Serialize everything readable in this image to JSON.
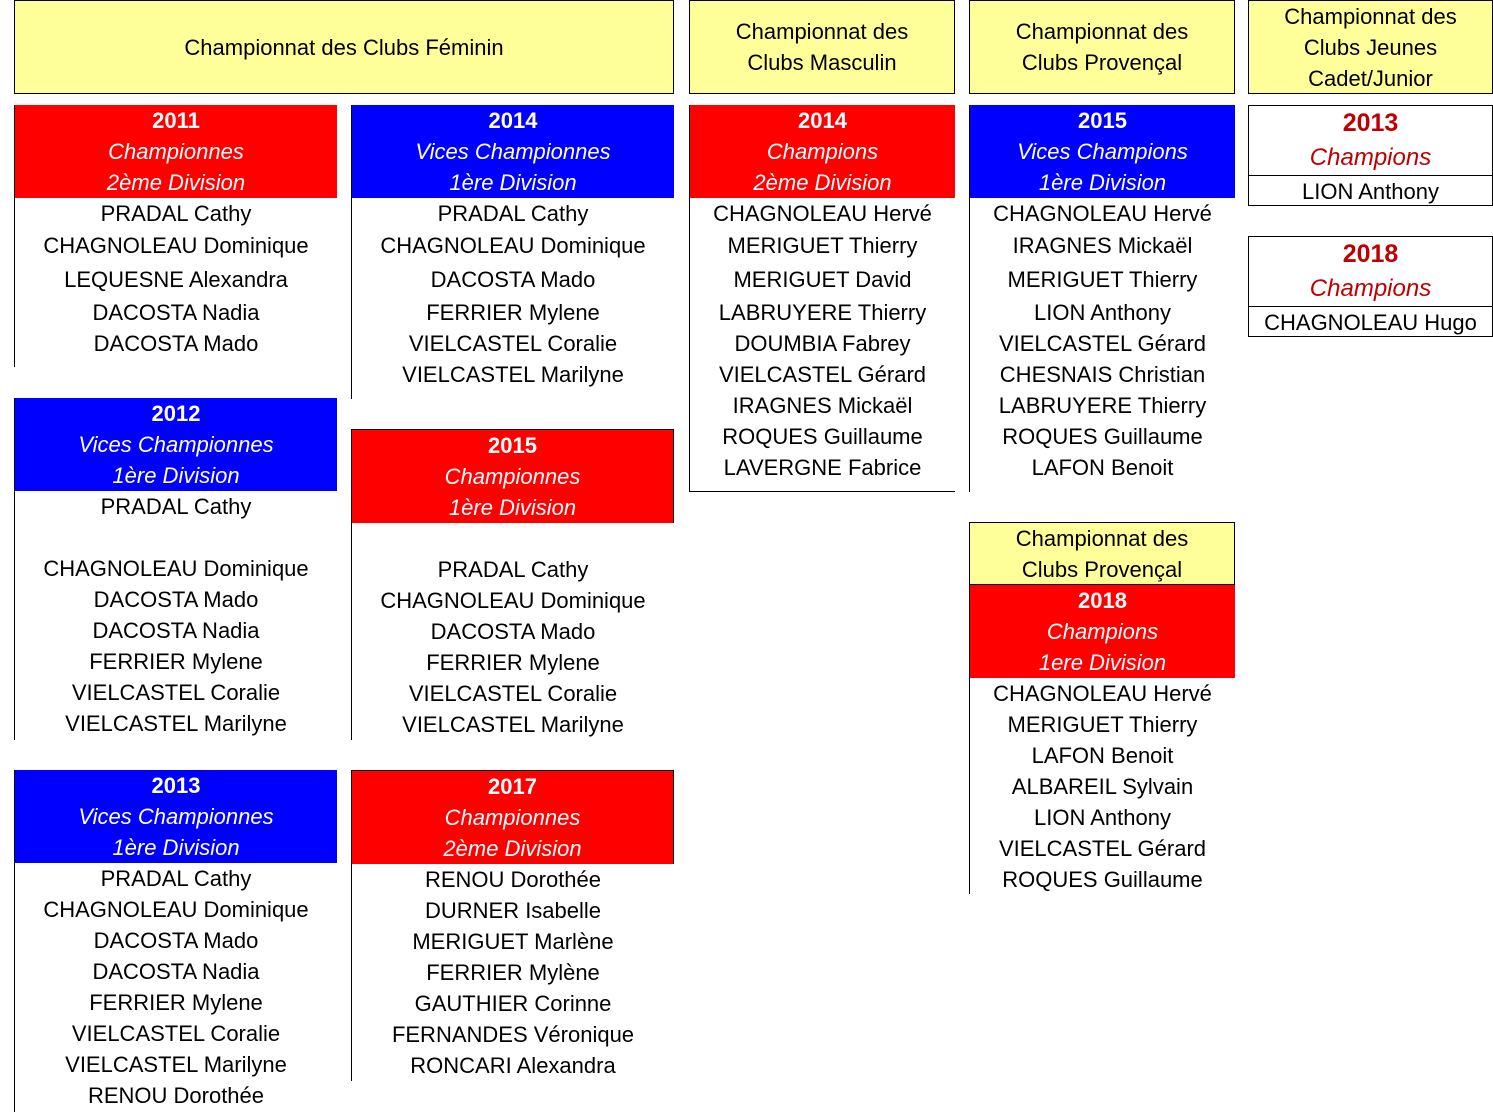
{
  "headers": {
    "feminin": "Championnat des Clubs Féminin",
    "masculin": "Championnat des\nClubs Masculin",
    "provencal": "Championnat des\nClubs Provençal",
    "jeunes": "Championnat des\nClubs Jeunes\nCadet/Junior",
    "provencal2": "Championnat des\nClubs Provençal"
  },
  "colors": {
    "red": "#ff0000",
    "blue": "#0000ff",
    "header_yellow": "#ffff99",
    "dark_red_text": "#c00000"
  },
  "cards": {
    "f2011": {
      "year": "2011",
      "title": "Championnes",
      "division": "2ème Division",
      "names": [
        "PRADAL Cathy",
        "CHAGNOLEAU Dominique",
        "LEQUESNE Alexandra",
        "DACOSTA Nadia",
        "DACOSTA Mado"
      ]
    },
    "f2014": {
      "year": "2014",
      "title": "Vices Championnes",
      "division": "1ère Division",
      "names": [
        "PRADAL Cathy",
        "CHAGNOLEAU Dominique",
        "DACOSTA Mado",
        "FERRIER Mylene",
        "VIELCASTEL Coralie",
        "VIELCASTEL Marilyne"
      ]
    },
    "f2012": {
      "year": "2012",
      "title": "Vices Championnes",
      "division": "1ère Division",
      "names": [
        "PRADAL Cathy",
        "CHAGNOLEAU Dominique",
        "DACOSTA Mado",
        "DACOSTA Nadia",
        "FERRIER Mylene",
        "VIELCASTEL Coralie",
        "VIELCASTEL Marilyne"
      ]
    },
    "f2015": {
      "year": "2015",
      "title": "Championnes",
      "division": "1ère Division",
      "names": [
        "PRADAL Cathy",
        "CHAGNOLEAU Dominique",
        "DACOSTA Mado",
        "FERRIER Mylene",
        "VIELCASTEL Coralie",
        "VIELCASTEL Marilyne"
      ]
    },
    "f2013": {
      "year": "2013",
      "title": "Vices Championnes",
      "division": "1ère Division",
      "names": [
        "PRADAL Cathy",
        "CHAGNOLEAU Dominique",
        "DACOSTA Mado",
        "DACOSTA Nadia",
        "FERRIER Mylene",
        "VIELCASTEL Coralie",
        "VIELCASTEL Marilyne",
        "RENOU Dorothée"
      ]
    },
    "f2017": {
      "year": "2017",
      "title": "Championnes",
      "division": "2ème Division",
      "names": [
        "RENOU Dorothée",
        "DURNER Isabelle",
        "MERIGUET Marlène",
        "FERRIER Mylène",
        "GAUTHIER Corinne",
        "FERNANDES Véronique",
        "RONCARI Alexandra"
      ]
    },
    "m2014": {
      "year": "2014",
      "title": "Champions",
      "division": "2ème Division",
      "names": [
        "CHAGNOLEAU Hervé",
        "MERIGUET Thierry",
        "MERIGUET David",
        "LABRUYERE Thierry",
        "DOUMBIA Fabrey",
        "VIELCASTEL Gérard",
        "IRAGNES Mickaël",
        "ROQUES Guillaume",
        "LAVERGNE Fabrice"
      ]
    },
    "p2015": {
      "year": "2015",
      "title": "Vices Champions",
      "division": "1ère Division",
      "names": [
        "CHAGNOLEAU Hervé",
        "IRAGNES Mickaël",
        "MERIGUET Thierry",
        "LION Anthony",
        "VIELCASTEL Gérard",
        "CHESNAIS Christian",
        "LABRUYERE Thierry",
        "ROQUES Guillaume",
        "LAFON Benoit"
      ]
    },
    "p2018": {
      "year": "2018",
      "title": "Champions",
      "division": "1ere Division",
      "names": [
        "CHAGNOLEAU Hervé",
        "MERIGUET Thierry",
        "LAFON Benoit",
        "ALBAREIL Sylvain",
        "LION Anthony",
        "VIELCASTEL Gérard",
        "ROQUES Guillaume"
      ]
    },
    "j2013": {
      "year": "2013",
      "title": "Champions",
      "names": [
        "LION Anthony"
      ]
    },
    "j2018": {
      "year": "2018",
      "title": "Champions",
      "names": [
        "CHAGNOLEAU Hugo"
      ]
    }
  }
}
